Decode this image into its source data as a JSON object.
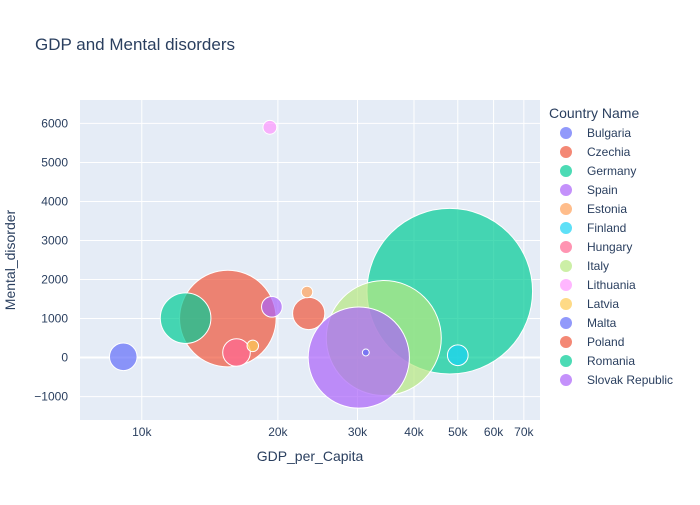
{
  "chart_data": {
    "type": "scatter",
    "title": "GDP and Mental disorders",
    "xlabel": "GDP_per_Capita",
    "ylabel": "Mental_disorder",
    "x_scale": "log",
    "xlim": [
      7300,
      76000
    ],
    "ylim": [
      -1600,
      6600
    ],
    "x_ticks": [
      10000,
      20000,
      30000,
      40000,
      50000,
      60000,
      70000
    ],
    "x_tick_labels": [
      "10k",
      "20k",
      "30k",
      "40k",
      "50k",
      "60k",
      "70k"
    ],
    "y_ticks": [
      -1000,
      0,
      1000,
      2000,
      3000,
      4000,
      5000,
      6000
    ],
    "y_tick_labels": [
      "−1000",
      "0",
      "1000",
      "2000",
      "3000",
      "4000",
      "5000",
      "6000"
    ],
    "grid": true,
    "legend_title": "Country Name",
    "legend_position": "right",
    "series": [
      {
        "name": "Bulgaria",
        "color": "#636efa",
        "x": 9100,
        "y": 20,
        "size": 0.06
      },
      {
        "name": "Czechia",
        "color": "#EF553B",
        "x": 23400,
        "y": 1130,
        "size": 0.07
      },
      {
        "name": "Germany",
        "color": "#00cc96",
        "x": 48000,
        "y": 1700,
        "size": 0.36
      },
      {
        "name": "Spain",
        "color": "#ab63fa",
        "x": 30200,
        "y": 0,
        "size": 0.22
      },
      {
        "name": "Estonia",
        "color": "#FFA15A",
        "x": 23200,
        "y": 1680,
        "size": 0.025
      },
      {
        "name": "Finland",
        "color": "#19d3f3",
        "x": 50000,
        "y": 60,
        "size": 0.045
      },
      {
        "name": "Hungary",
        "color": "#FF6692",
        "x": 16200,
        "y": 130,
        "size": 0.06
      },
      {
        "name": "Italy",
        "color": "#B6E880",
        "x": 34300,
        "y": 500,
        "size": 0.25
      },
      {
        "name": "Lithuania",
        "color": "#FF97FF",
        "x": 19200,
        "y": 5900,
        "size": 0.03
      },
      {
        "name": "Latvia",
        "color": "#FECB52",
        "x": 17600,
        "y": 300,
        "size": 0.025
      },
      {
        "name": "Malta",
        "color": "#636efa",
        "x": 31300,
        "y": 130,
        "size": 0.015
      },
      {
        "name": "Poland",
        "color": "#EF553B",
        "x": 15500,
        "y": 1000,
        "size": 0.21
      },
      {
        "name": "Romania",
        "color": "#00cc96",
        "x": 12500,
        "y": 1010,
        "size": 0.11
      },
      {
        "name": "Slovak Republic",
        "color": "#ab63fa",
        "x": 19400,
        "y": 1300,
        "size": 0.045
      }
    ]
  }
}
